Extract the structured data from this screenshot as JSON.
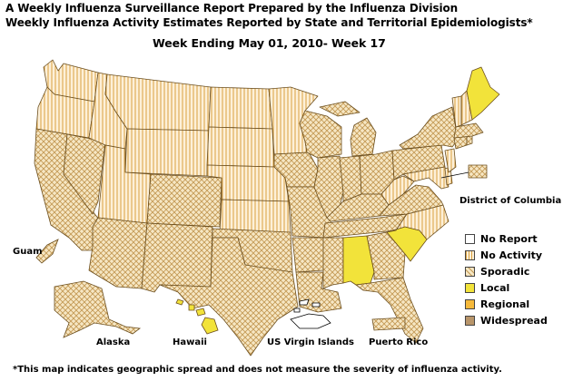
{
  "header": {
    "line1": "A Weekly Influenza Surveillance Report Prepared by the Influenza Division",
    "line2": "Weekly Influenza Activity Estimates Reported by State and Territorial Epidemiologists*",
    "week": "Week Ending May 01, 2010- Week 17"
  },
  "labels": {
    "dc": "District of Columbia",
    "guam": "Guam",
    "alaska": "Alaska",
    "hawaii": "Hawaii",
    "usvi": "US Virgin Islands",
    "pr": "Puerto Rico"
  },
  "legend": [
    {
      "label": "No Report",
      "key": "noreport"
    },
    {
      "label": "No Activity",
      "key": "noactivity"
    },
    {
      "label": "Sporadic",
      "key": "sporadic"
    },
    {
      "label": "Local",
      "key": "local"
    },
    {
      "label": "Regional",
      "key": "regional"
    },
    {
      "label": "Widespread",
      "key": "widespread"
    }
  ],
  "colors": {
    "noreport": "#ffffff",
    "noactivity": "#fdf0d8",
    "sporadic": "#f3dfb5",
    "local": "#f2e33a",
    "regional": "#f6b93b",
    "widespread": "#b8956a",
    "border": "#6b4e1e"
  },
  "activity": {
    "No Activity": [
      "WA",
      "OR",
      "ID",
      "MT",
      "WY",
      "ND",
      "SD",
      "NE",
      "KS",
      "MN",
      "NV-E",
      "UT",
      "VT",
      "NH",
      "NC",
      "MD",
      "DE",
      "NJ",
      "WV"
    ],
    "Sporadic": [
      "CA",
      "NV",
      "AZ",
      "NM",
      "CO",
      "TX",
      "OK",
      "IA",
      "MO",
      "AR",
      "LA",
      "MS",
      "WI",
      "IL",
      "IN",
      "OH",
      "MI",
      "KY",
      "TN",
      "GA",
      "FL",
      "VA",
      "PA",
      "NY",
      "MA",
      "CT",
      "RI",
      "AK",
      "GU",
      "PR",
      "DC"
    ],
    "Local": [
      "ME",
      "SC",
      "AL",
      "HI"
    ],
    "Regional": [],
    "Widespread": []
  },
  "footnote": "*This map indicates geographic spread and does not measure the severity of influenza activity."
}
